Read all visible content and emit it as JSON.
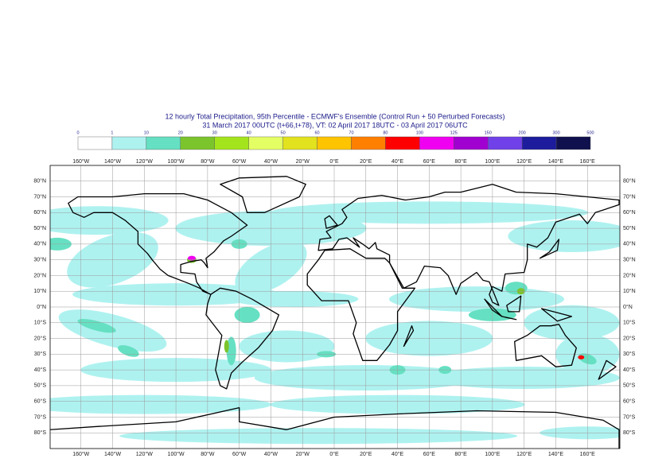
{
  "title": {
    "line1": "12 hourly Total Precipitation, 95th Percentile - ECMWF's Ensemble (Control Run + 50 Perturbed Forecasts)",
    "line2": "31 March 2017 00UTC (t+66,t+78), VT: 02 April 2017 18UTC - 03 April 2017 06UTC"
  },
  "legend": {
    "levels": [
      0,
      1,
      10,
      20,
      30,
      40,
      50,
      60,
      70,
      80,
      100,
      125,
      150,
      200,
      300,
      500
    ],
    "colors": [
      "#ffffff",
      "#aef2f0",
      "#66e0c2",
      "#7cc42c",
      "#a4e41c",
      "#e4ff64",
      "#e2e21e",
      "#ffc400",
      "#ff8000",
      "#ff0000",
      "#f000f0",
      "#a000d0",
      "#7040e8",
      "#1c1c9c",
      "#10104e"
    ]
  },
  "map": {
    "lon_labels": [
      "160°W",
      "140°W",
      "120°W",
      "100°W",
      "80°W",
      "60°W",
      "40°W",
      "20°W",
      "0°E",
      "20°E",
      "40°E",
      "60°E",
      "80°E",
      "100°E",
      "120°E",
      "140°E",
      "160°E"
    ],
    "lat_labels": [
      "80°N",
      "70°N",
      "60°N",
      "50°N",
      "40°N",
      "30°N",
      "20°N",
      "10°N",
      "0°N",
      "10°S",
      "20°S",
      "30°S",
      "40°S",
      "50°S",
      "60°S",
      "70°S",
      "80°S"
    ]
  }
}
